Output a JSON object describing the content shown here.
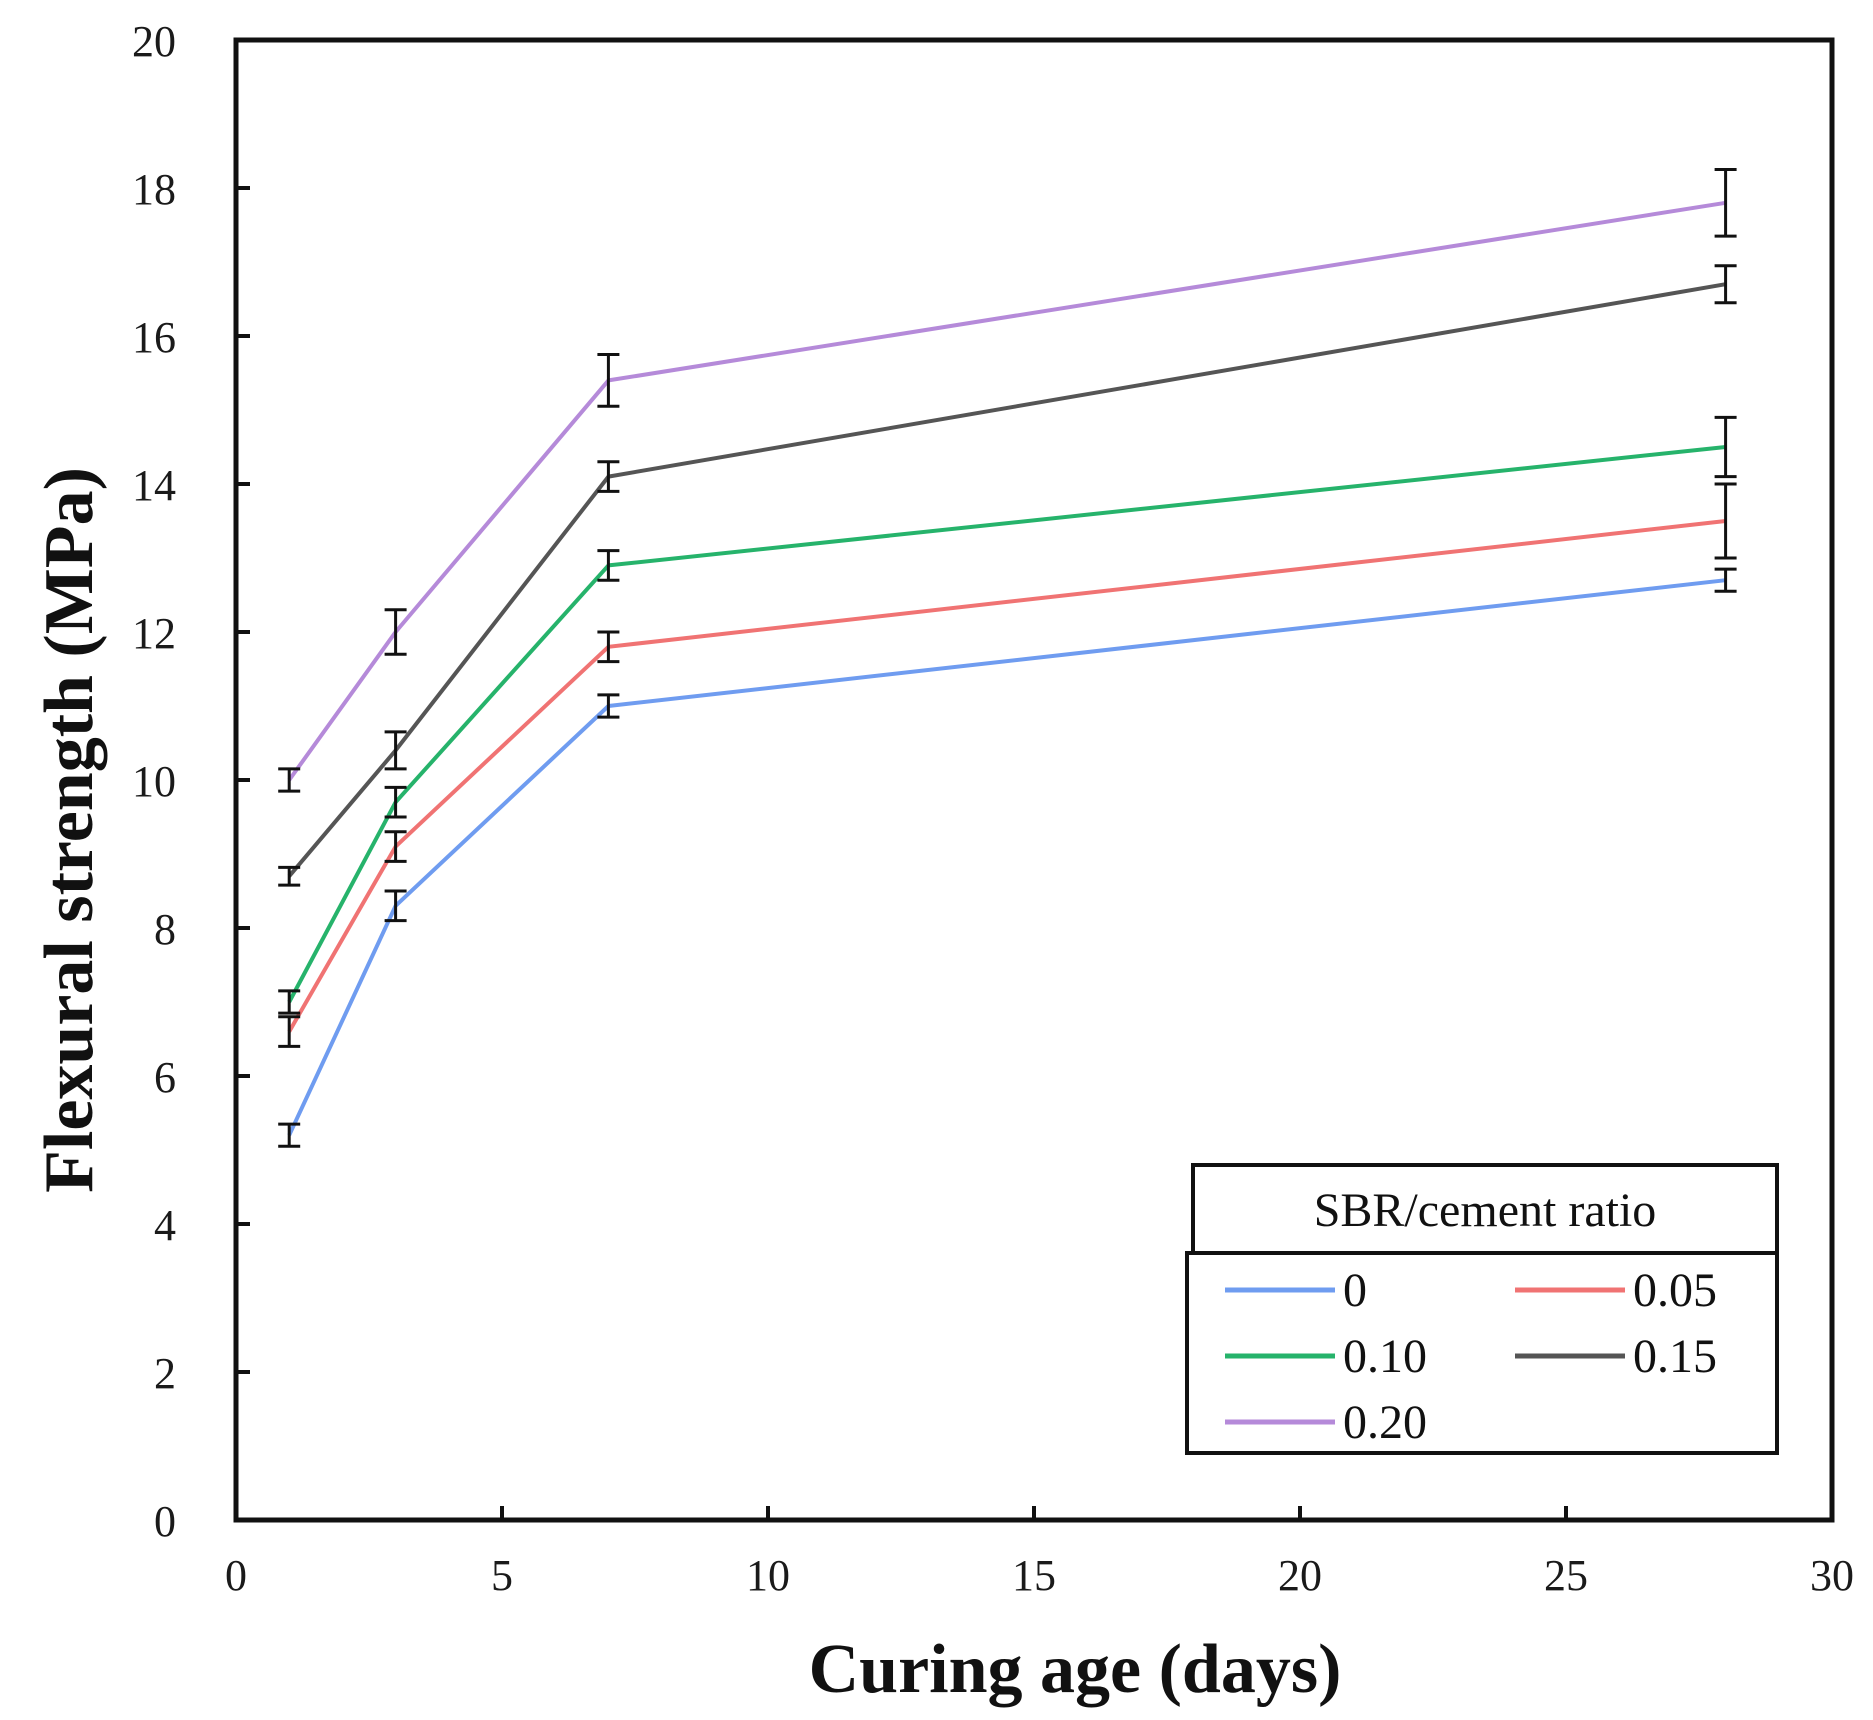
{
  "chart_data": {
    "type": "line",
    "title": "",
    "xlabel": "Curing age (days)",
    "ylabel": "Flexural strength (MPa)",
    "xlim": [
      0,
      30
    ],
    "ylim": [
      0,
      20
    ],
    "xticks": [
      0,
      5,
      10,
      15,
      20,
      25,
      30
    ],
    "yticks": [
      0,
      2,
      4,
      6,
      8,
      10,
      12,
      14,
      16,
      18,
      20
    ],
    "x": [
      1,
      3,
      7,
      28
    ],
    "legend": {
      "title": "SBR/cement ratio",
      "position": "bottom-right",
      "columns": 2
    },
    "series": [
      {
        "name": "0",
        "color": "#6f9cf0",
        "values": [
          5.2,
          8.3,
          11.0,
          12.7
        ],
        "errors": [
          0.15,
          0.2,
          0.15,
          0.15
        ]
      },
      {
        "name": "0.05",
        "color": "#f07373",
        "values": [
          6.6,
          9.1,
          11.8,
          13.5
        ],
        "errors": [
          0.2,
          0.2,
          0.2,
          0.5
        ]
      },
      {
        "name": "0.10",
        "color": "#26b36b",
        "values": [
          7.0,
          9.7,
          12.9,
          14.5
        ],
        "errors": [
          0.15,
          0.2,
          0.2,
          0.4
        ]
      },
      {
        "name": "0.15",
        "color": "#555555",
        "values": [
          8.7,
          10.4,
          14.1,
          16.7
        ],
        "errors": [
          0.12,
          0.25,
          0.2,
          0.25
        ]
      },
      {
        "name": "0.20",
        "color": "#b58ad9",
        "values": [
          10.0,
          12.0,
          15.4,
          17.8
        ],
        "errors": [
          0.15,
          0.3,
          0.35,
          0.45
        ]
      }
    ]
  }
}
